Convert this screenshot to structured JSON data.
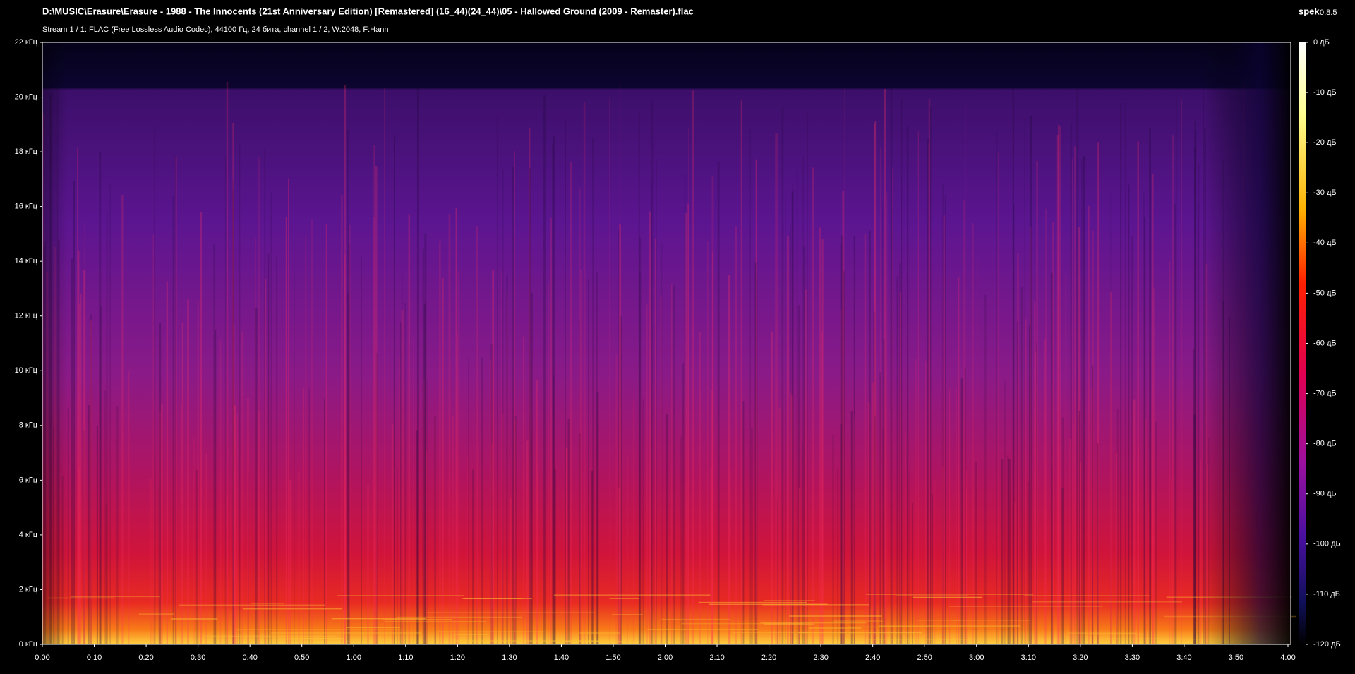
{
  "header": {
    "path": "D:\\MUSIC\\Erasure\\Erasure - 1988 - The Innocents (21st Anniversary Edition) [Remastered] (16_44)(24_44)\\05 - Hallowed Ground (2009 - Remaster).flac",
    "stream": "Stream 1 / 1: FLAC (Free Lossless Audio Codec), 44100 Гц, 24 бита, channel 1 / 2, W:2048, F:Hann",
    "app": "spek",
    "version": "0.8.5"
  },
  "axes": {
    "frequency": [
      "0 кГц",
      "2 кГц",
      "4 кГц",
      "6 кГц",
      "8 кГц",
      "10 кГц",
      "12 кГц",
      "14 кГц",
      "16 кГц",
      "18 кГц",
      "20 кГц",
      "22 кГц"
    ],
    "time": [
      "0:00",
      "0:10",
      "0:20",
      "0:30",
      "0:40",
      "0:50",
      "1:00",
      "1:10",
      "1:20",
      "1:30",
      "1:40",
      "1:50",
      "2:00",
      "2:10",
      "2:20",
      "2:30",
      "2:40",
      "2:50",
      "3:00",
      "3:10",
      "3:20",
      "3:30",
      "3:40",
      "3:50",
      "4:00"
    ],
    "level": [
      "0 дБ",
      "-10 дБ",
      "-20 дБ",
      "-30 дБ",
      "-40 дБ",
      "-50 дБ",
      "-60 дБ",
      "-70 дБ",
      "-80 дБ",
      "-90 дБ",
      "-100 дБ",
      "-110 дБ",
      "-120 дБ"
    ]
  }
}
